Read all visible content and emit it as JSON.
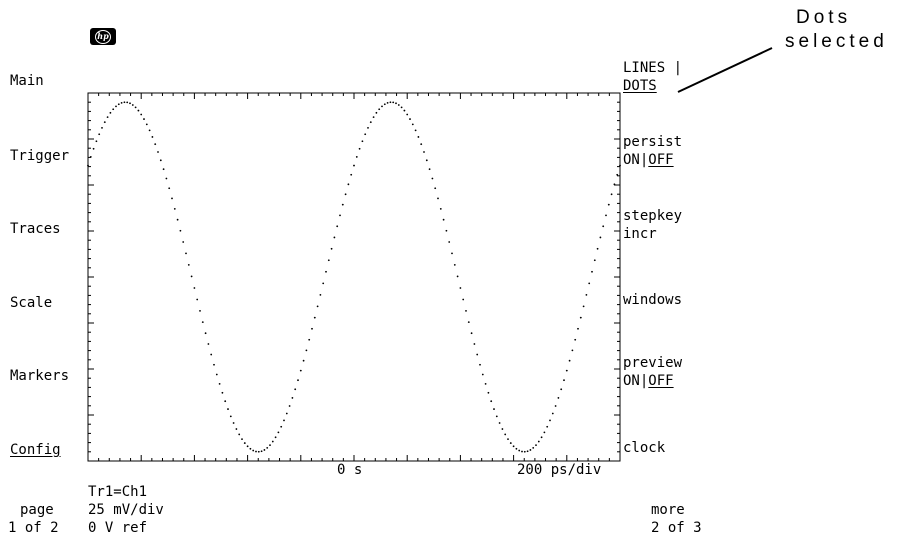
{
  "logo": {
    "text": "hp"
  },
  "callout": {
    "line1": "Dots",
    "line2": "selected"
  },
  "left_menu": [
    {
      "label": "Main"
    },
    {
      "label": "Trigger"
    },
    {
      "label": "Traces"
    },
    {
      "label": "Scale"
    },
    {
      "label": "Markers"
    },
    {
      "label": "Config"
    }
  ],
  "right_menu": {
    "display_mode": {
      "line1": "LINES |",
      "line2": "DOTS"
    },
    "persist": {
      "label": "persist",
      "on": "ON",
      "sep": "|",
      "off": "OFF"
    },
    "stepkey": {
      "line1": "stepkey",
      "line2": "incr"
    },
    "windows": {
      "label": "windows"
    },
    "preview": {
      "label": "preview",
      "on": "ON",
      "sep": "|",
      "off": "OFF"
    },
    "clock": {
      "label": "clock"
    }
  },
  "axis": {
    "center_time": "0 s",
    "timebase": "200 ps/div"
  },
  "status": {
    "trace": "Tr1=Ch1",
    "vscale": "25 mV/div",
    "vref": "0 V ref",
    "page_label": "page",
    "page_value": "1 of 2",
    "more_label": "more",
    "more_value": "2 of 3"
  },
  "waveform": {
    "style": "dots",
    "periods_on_screen": 2,
    "peak_phase_start": 0.14,
    "amplitude_fraction": 0.95,
    "dot_count": 190
  }
}
